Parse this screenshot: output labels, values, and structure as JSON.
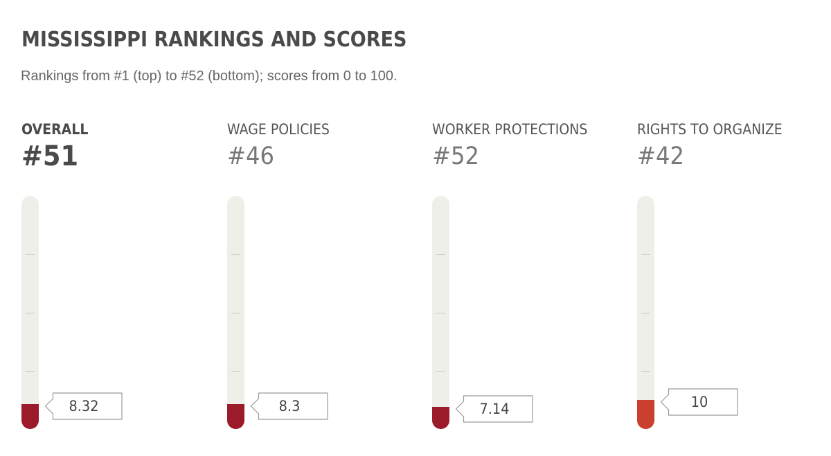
{
  "title": "MISSISSIPPI RANKINGS AND SCORES",
  "subtitle": "Rankings from #1 (top) to #52 (bottom); scores from 0 to 100.",
  "chart_data": {
    "type": "bar",
    "orientation": "vertical",
    "categories": [
      "OVERALL",
      "WAGE POLICIES",
      "WORKER PROTECTIONS",
      "RIGHTS TO ORGANIZE"
    ],
    "ranks": [
      "#51",
      "#46",
      "#52",
      "#42"
    ],
    "values": [
      8.32,
      8.3,
      7.14,
      10
    ],
    "value_labels": [
      "8.32",
      "8.3",
      "7.14",
      "10"
    ],
    "ylim": [
      0,
      100
    ],
    "grid_ticks": [
      25,
      50,
      75
    ],
    "colors": [
      "#9b1b2a",
      "#9b1b2a",
      "#9b1b2a",
      "#c9402f"
    ],
    "track_color": "#efefea"
  }
}
